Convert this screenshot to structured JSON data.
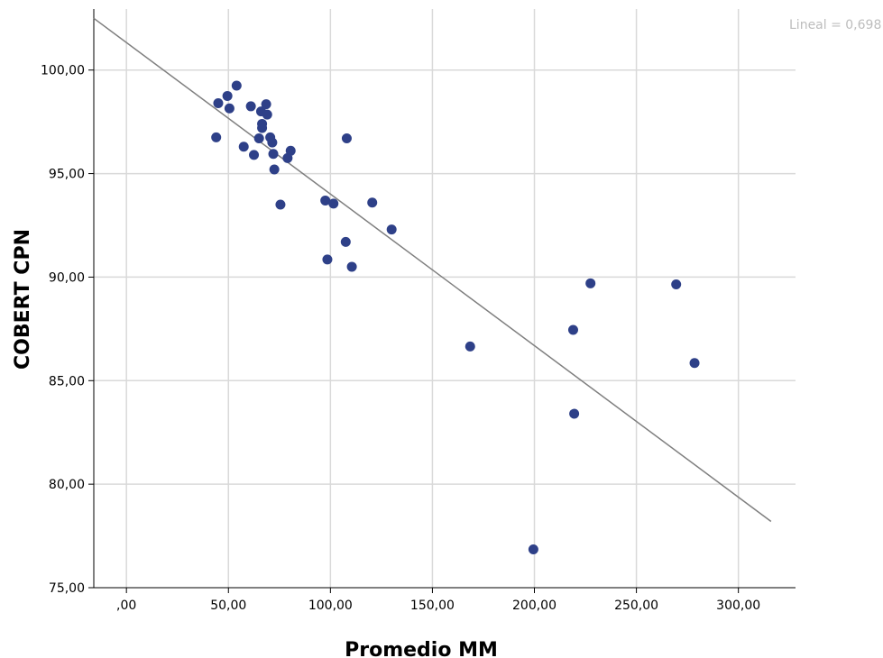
{
  "chart_data": {
    "type": "scatter",
    "xlabel": "Promedio MM",
    "ylabel": "COBERT CPN",
    "xlim": [
      -16,
      328
    ],
    "ylim": [
      75,
      102.6
    ],
    "x_ticks": [
      0,
      50,
      100,
      150,
      200,
      250,
      300
    ],
    "x_tick_labels": [
      ",00",
      "50,00",
      "100,00",
      "150,00",
      "200,00",
      "250,00",
      "300,00"
    ],
    "y_ticks": [
      75,
      80,
      85,
      90,
      95,
      100
    ],
    "y_tick_labels": [
      "75,00",
      "80,00",
      "85,00",
      "90,00",
      "95,00",
      "100,00"
    ],
    "grid": true,
    "fit_line": {
      "label": "Lineal = 0,698",
      "x": [
        -16,
        316
      ],
      "y": [
        102.5,
        78.2
      ]
    },
    "colors": {
      "points": "#2e4088",
      "fit_line": "#7f7f7f",
      "grid": "#d9d9d9"
    },
    "points": [
      {
        "x": 45,
        "y": 98.4
      },
      {
        "x": 44,
        "y": 96.75
      },
      {
        "x": 49.5,
        "y": 98.75
      },
      {
        "x": 50.5,
        "y": 98.15
      },
      {
        "x": 54,
        "y": 99.25
      },
      {
        "x": 57.5,
        "y": 96.3
      },
      {
        "x": 61,
        "y": 98.25
      },
      {
        "x": 62.5,
        "y": 95.9
      },
      {
        "x": 65,
        "y": 96.7
      },
      {
        "x": 66,
        "y": 98.0
      },
      {
        "x": 66.5,
        "y": 97.4
      },
      {
        "x": 66.5,
        "y": 97.2
      },
      {
        "x": 68.5,
        "y": 98.35
      },
      {
        "x": 69,
        "y": 97.85
      },
      {
        "x": 70.5,
        "y": 96.75
      },
      {
        "x": 71.5,
        "y": 96.5
      },
      {
        "x": 72,
        "y": 95.95
      },
      {
        "x": 72.5,
        "y": 95.2
      },
      {
        "x": 75.5,
        "y": 93.5
      },
      {
        "x": 79,
        "y": 95.75
      },
      {
        "x": 80.5,
        "y": 96.1
      },
      {
        "x": 97.5,
        "y": 93.7
      },
      {
        "x": 98.5,
        "y": 90.85
      },
      {
        "x": 101.5,
        "y": 93.55
      },
      {
        "x": 107.5,
        "y": 91.7
      },
      {
        "x": 108,
        "y": 96.7
      },
      {
        "x": 110.5,
        "y": 90.5
      },
      {
        "x": 120.5,
        "y": 93.6
      },
      {
        "x": 130,
        "y": 92.3
      },
      {
        "x": 168.5,
        "y": 86.65
      },
      {
        "x": 199.5,
        "y": 76.85
      },
      {
        "x": 219,
        "y": 87.45
      },
      {
        "x": 219.5,
        "y": 83.4
      },
      {
        "x": 227.5,
        "y": 89.7
      },
      {
        "x": 269.5,
        "y": 89.65
      },
      {
        "x": 278.5,
        "y": 85.85
      }
    ]
  }
}
